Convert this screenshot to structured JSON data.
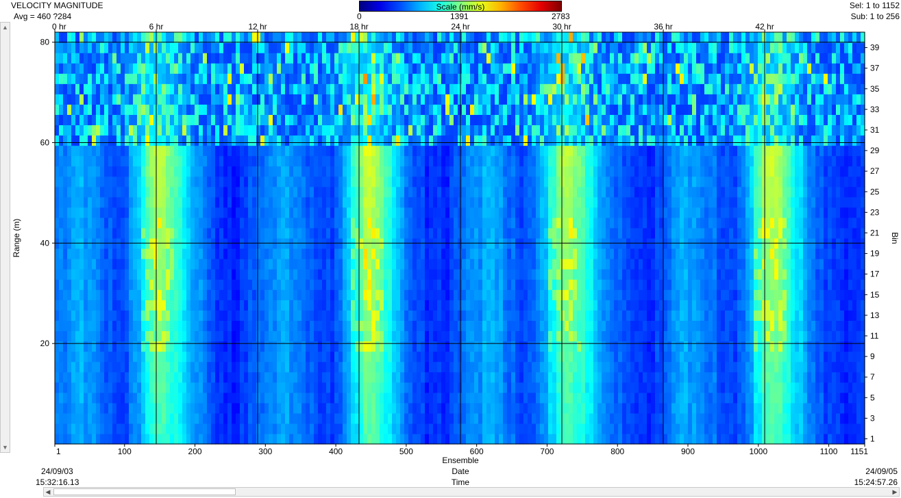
{
  "header": {
    "title": "VELOCITY MAGNITUDE",
    "avg": "Avg = 460 ?284",
    "sel": "Sel: 1 to 1152",
    "sub": "Sub: 1 to 256"
  },
  "colorbar": {
    "label": "Scale (mm/s)",
    "min": "0",
    "mid": "1391",
    "max": "2783"
  },
  "chart_data": {
    "type": "heatmap",
    "title": "VELOCITY MAGNITUDE",
    "xlabel": "Ensemble",
    "ylabel": "Range (m)",
    "y2label": "Bin",
    "xlim": [
      1,
      1151
    ],
    "ylim": [
      0,
      82
    ],
    "bins": 40,
    "x_ticks": [
      "1",
      "100",
      "200",
      "300",
      "400",
      "500",
      "600",
      "700",
      "800",
      "900",
      "1000",
      "1100",
      "1151"
    ],
    "x_tick_values": [
      1,
      100,
      200,
      300,
      400,
      500,
      600,
      700,
      800,
      900,
      1000,
      1100,
      1151
    ],
    "y_ticks": [
      "20",
      "40",
      "60",
      "80"
    ],
    "y_tick_values": [
      20,
      40,
      60,
      80
    ],
    "bin_ticks": [
      "1",
      "3",
      "5",
      "7",
      "9",
      "11",
      "13",
      "15",
      "17",
      "19",
      "21",
      "23",
      "25",
      "27",
      "29",
      "31",
      "33",
      "35",
      "37",
      "39"
    ],
    "bin_tick_values": [
      1,
      3,
      5,
      7,
      9,
      11,
      13,
      15,
      17,
      19,
      21,
      23,
      25,
      27,
      29,
      31,
      33,
      35,
      37,
      39
    ],
    "time_ticks": [
      "0 hr",
      "6 hr",
      "12 hr",
      "18 hr",
      "24 hr",
      "30 hr",
      "36 hr",
      "42 hr"
    ],
    "time_tick_ensembles": [
      1,
      145,
      289,
      433,
      577,
      721,
      865,
      1009
    ],
    "color_scale": {
      "min": 0,
      "max": 2783,
      "unit": "mm/s"
    },
    "average": 460,
    "high_speed_ensemble_centers": [
      145,
      445,
      725,
      1015
    ],
    "start_date": "24/09/03",
    "start_time": "15:32:16.13",
    "end_date": "24/09/05",
    "end_time": "15:24:57.26",
    "row2_label": "Date",
    "row3_label": "Time",
    "grid": true
  }
}
